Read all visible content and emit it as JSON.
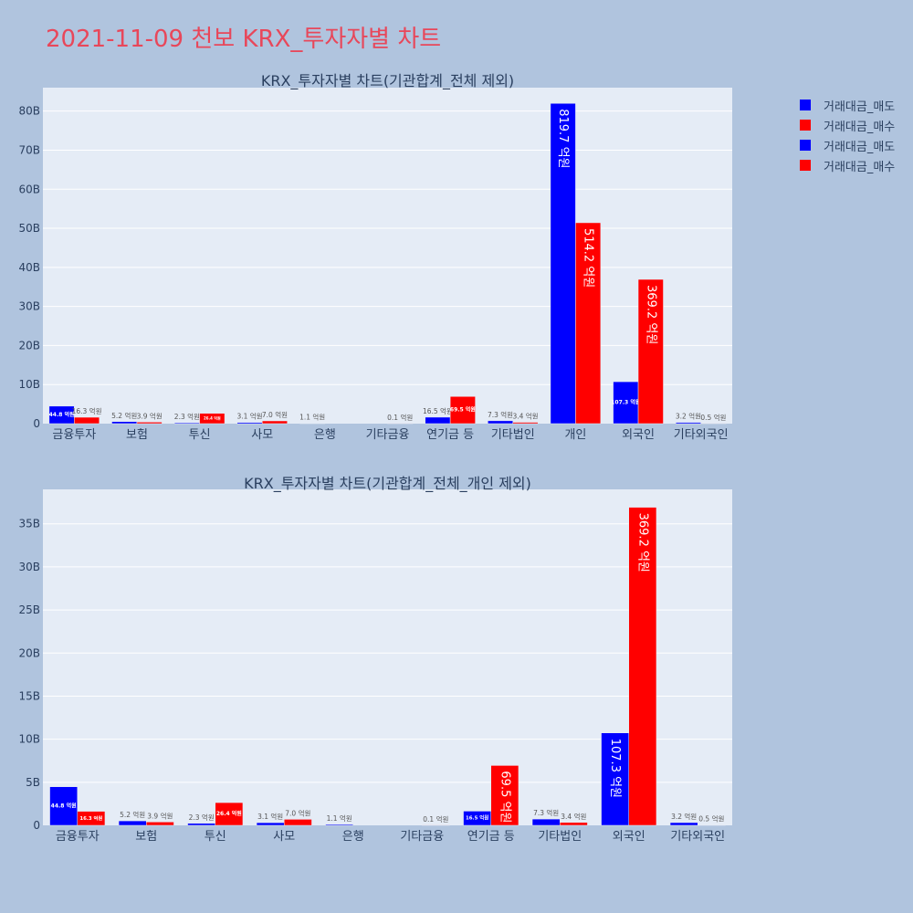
{
  "page": {
    "title": "2021-11-09 천보 KRX_투자자별 차트"
  },
  "legend": [
    {
      "label": "거래대금_매도",
      "color": "#0000ff"
    },
    {
      "label": "거래대금_매수",
      "color": "#ff0000"
    },
    {
      "label": "거래대금_매도",
      "color": "#0000ff"
    },
    {
      "label": "거래대금_매수",
      "color": "#ff0000"
    }
  ],
  "chart_data": [
    {
      "type": "bar",
      "title": "KRX_투자자별 차트(기관합계_전체 제외)",
      "categories": [
        "금융투자",
        "보험",
        "투신",
        "사모",
        "은행",
        "기타금융",
        "연기금 등",
        "기타법인",
        "개인",
        "외국인",
        "기타외국인"
      ],
      "yticks": [
        0,
        10,
        20,
        30,
        40,
        50,
        60,
        70,
        80
      ],
      "ytick_labels": [
        "0",
        "10B",
        "20B",
        "30B",
        "40B",
        "50B",
        "60B",
        "70B",
        "80B"
      ],
      "ylim": [
        0,
        86
      ],
      "series": [
        {
          "name": "거래대금_매도",
          "color": "#0000ff",
          "values": [
            4.48,
            0.52,
            0.23,
            0.31,
            0.11,
            0,
            1.65,
            0.73,
            81.97,
            10.73,
            0.32
          ],
          "labels": [
            "44.8 억원",
            "5.2 억원",
            "2.3 억원",
            "3.1 억원",
            "1.1 억원",
            "",
            "16.5 억원",
            "7.3 억원",
            "819.7 억원",
            "107.3 억원",
            "3.2 억원"
          ]
        },
        {
          "name": "거래대금_매수",
          "color": "#ff0000",
          "values": [
            1.63,
            0.39,
            2.64,
            0.7,
            0,
            0.01,
            6.95,
            0.34,
            51.42,
            36.92,
            0.05
          ],
          "labels": [
            "16.3 억원",
            "3.9 억원",
            "26.4 억원",
            "7.0 억원",
            "",
            "0.1 억원",
            "69.5 억원",
            "3.4 억원",
            "514.2 억원",
            "369.2 억원",
            "0.5 억원"
          ]
        }
      ]
    },
    {
      "type": "bar",
      "title": "KRX_투자자별 차트(기관합계_전체_개인 제외)",
      "categories": [
        "금융투자",
        "보험",
        "투신",
        "사모",
        "은행",
        "기타금융",
        "연기금 등",
        "기타법인",
        "외국인",
        "기타외국인"
      ],
      "yticks": [
        0,
        5,
        10,
        15,
        20,
        25,
        30,
        35
      ],
      "ytick_labels": [
        "0",
        "5B",
        "10B",
        "15B",
        "20B",
        "25B",
        "30B",
        "35B"
      ],
      "ylim": [
        0,
        39
      ],
      "series": [
        {
          "name": "거래대금_매도",
          "color": "#0000ff",
          "values": [
            4.48,
            0.52,
            0.23,
            0.31,
            0.11,
            0,
            1.65,
            0.73,
            10.73,
            0.32
          ],
          "labels": [
            "44.8 억원",
            "5.2 억원",
            "2.3 억원",
            "3.1 억원",
            "1.1 억원",
            "",
            "16.5 억원",
            "7.3 억원",
            "107.3 억원",
            "3.2 억원"
          ]
        },
        {
          "name": "거래대금_매수",
          "color": "#ff0000",
          "values": [
            1.63,
            0.39,
            2.64,
            0.7,
            0,
            0.01,
            6.95,
            0.34,
            36.92,
            0.05
          ],
          "labels": [
            "16.3 억원",
            "3.9 억원",
            "26.4 억원",
            "7.0 억원",
            "",
            "0.1 억원",
            "69.5 억원",
            "3.4 억원",
            "369.2 억원",
            "0.5 억원"
          ]
        }
      ]
    }
  ]
}
